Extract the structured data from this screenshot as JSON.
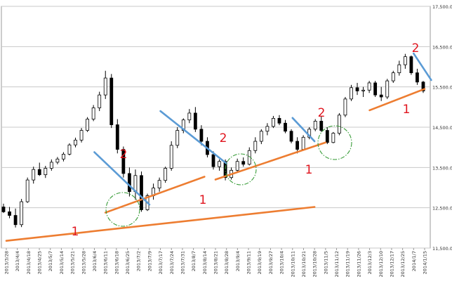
{
  "chart_data": {
    "type": "candlestick",
    "y_axis": {
      "min": 11500,
      "max": 17500,
      "ticks": [
        {
          "value": 17500,
          "label": "17,500.00"
        },
        {
          "value": 16500,
          "label": "16,500.00"
        },
        {
          "value": 15500,
          "label": "15,500.00"
        },
        {
          "value": 14500,
          "label": "14,500.00"
        },
        {
          "value": 13500,
          "label": "13,500.00"
        },
        {
          "value": 12500,
          "label": "12,500.00"
        },
        {
          "value": 11500,
          "label": "11,500.00"
        }
      ],
      "grid": true
    },
    "x_axis": {
      "labels": [
        "2013/3/28",
        "2013/4/4",
        "2013/4/18",
        "2013/4/25",
        "2013/5/7",
        "2013/5/14",
        "2013/5/21",
        "2013/5/28",
        "2013/6/4",
        "2013/6/11",
        "2013/6/18",
        "2013/6/25",
        "2013/7/2",
        "2013/7/9",
        "2013/7/17",
        "2013/7/24",
        "2013/7/31",
        "2013/8/7",
        "2013/8/14",
        "2013/8/21",
        "2013/8/28",
        "2013/9/4",
        "2013/9/11",
        "2013/9/19",
        "2013/9/27",
        "2013/10/4",
        "2013/10/11",
        "2013/10/21",
        "2013/10/28",
        "2013/11/5",
        "2013/11/12",
        "2013/11/19",
        "2013/11/26",
        "2013/12/3",
        "2013/12/10",
        "2013/12/17",
        "2013/12/25",
        "2014/1/7",
        "2014/1/15"
      ]
    },
    "candles": [
      {
        "o": 12520,
        "h": 12600,
        "l": 12370,
        "c": 12400
      },
      {
        "o": 12400,
        "h": 12520,
        "l": 12240,
        "c": 12310
      },
      {
        "o": 12310,
        "h": 12480,
        "l": 12010,
        "c": 12080
      },
      {
        "o": 12080,
        "h": 12720,
        "l": 12020,
        "c": 12650
      },
      {
        "o": 12650,
        "h": 13250,
        "l": 12620,
        "c": 13190
      },
      {
        "o": 13190,
        "h": 13520,
        "l": 13100,
        "c": 13450
      },
      {
        "o": 13450,
        "h": 13620,
        "l": 13290,
        "c": 13320
      },
      {
        "o": 13320,
        "h": 13540,
        "l": 13240,
        "c": 13480
      },
      {
        "o": 13480,
        "h": 13700,
        "l": 13420,
        "c": 13630
      },
      {
        "o": 13630,
        "h": 13760,
        "l": 13580,
        "c": 13710
      },
      {
        "o": 13710,
        "h": 13880,
        "l": 13650,
        "c": 13830
      },
      {
        "o": 13830,
        "h": 14100,
        "l": 13800,
        "c": 14060
      },
      {
        "o": 14060,
        "h": 14240,
        "l": 14000,
        "c": 14180
      },
      {
        "o": 14180,
        "h": 14480,
        "l": 14120,
        "c": 14420
      },
      {
        "o": 14420,
        "h": 14750,
        "l": 14380,
        "c": 14700
      },
      {
        "o": 14700,
        "h": 15050,
        "l": 14650,
        "c": 14980
      },
      {
        "o": 14980,
        "h": 15380,
        "l": 14900,
        "c": 15300
      },
      {
        "o": 15300,
        "h": 15900,
        "l": 15200,
        "c": 15720
      },
      {
        "o": 15720,
        "h": 15820,
        "l": 14480,
        "c": 14560
      },
      {
        "o": 14560,
        "h": 14700,
        "l": 13850,
        "c": 13950
      },
      {
        "o": 13950,
        "h": 14020,
        "l": 13250,
        "c": 13350
      },
      {
        "o": 13350,
        "h": 13500,
        "l": 12780,
        "c": 12900
      },
      {
        "o": 12900,
        "h": 13450,
        "l": 12700,
        "c": 13300
      },
      {
        "o": 13300,
        "h": 13400,
        "l": 12400,
        "c": 12450
      },
      {
        "o": 12450,
        "h": 12850,
        "l": 12420,
        "c": 12800
      },
      {
        "o": 12800,
        "h": 13100,
        "l": 12700,
        "c": 12990
      },
      {
        "o": 12990,
        "h": 13250,
        "l": 12900,
        "c": 13180
      },
      {
        "o": 13180,
        "h": 13520,
        "l": 13120,
        "c": 13480
      },
      {
        "o": 13480,
        "h": 14150,
        "l": 13420,
        "c": 14050
      },
      {
        "o": 14050,
        "h": 14500,
        "l": 13980,
        "c": 14420
      },
      {
        "o": 14420,
        "h": 14720,
        "l": 14350,
        "c": 14680
      },
      {
        "o": 14680,
        "h": 14950,
        "l": 14600,
        "c": 14850
      },
      {
        "o": 14850,
        "h": 15000,
        "l": 14380,
        "c": 14450
      },
      {
        "o": 14450,
        "h": 14550,
        "l": 14050,
        "c": 14150
      },
      {
        "o": 14150,
        "h": 14250,
        "l": 13750,
        "c": 13820
      },
      {
        "o": 13820,
        "h": 13900,
        "l": 13450,
        "c": 13520
      },
      {
        "o": 13520,
        "h": 13700,
        "l": 13420,
        "c": 13650
      },
      {
        "o": 13650,
        "h": 13700,
        "l": 13180,
        "c": 13250
      },
      {
        "o": 13250,
        "h": 13500,
        "l": 13200,
        "c": 13430
      },
      {
        "o": 13430,
        "h": 13720,
        "l": 13380,
        "c": 13650
      },
      {
        "o": 13650,
        "h": 13750,
        "l": 13520,
        "c": 13580
      },
      {
        "o": 13580,
        "h": 14000,
        "l": 13550,
        "c": 13920
      },
      {
        "o": 13920,
        "h": 14250,
        "l": 13850,
        "c": 14150
      },
      {
        "o": 14150,
        "h": 14450,
        "l": 14080,
        "c": 14400
      },
      {
        "o": 14400,
        "h": 14600,
        "l": 14300,
        "c": 14520
      },
      {
        "o": 14520,
        "h": 14780,
        "l": 14480,
        "c": 14720
      },
      {
        "o": 14720,
        "h": 14800,
        "l": 14550,
        "c": 14600
      },
      {
        "o": 14600,
        "h": 14680,
        "l": 14350,
        "c": 14400
      },
      {
        "o": 14400,
        "h": 14450,
        "l": 14100,
        "c": 14150
      },
      {
        "o": 14150,
        "h": 14250,
        "l": 13850,
        "c": 13950
      },
      {
        "o": 13950,
        "h": 14300,
        "l": 13920,
        "c": 14250
      },
      {
        "o": 14250,
        "h": 14500,
        "l": 14200,
        "c": 14450
      },
      {
        "o": 14450,
        "h": 14700,
        "l": 14400,
        "c": 14650
      },
      {
        "o": 14650,
        "h": 14780,
        "l": 14380,
        "c": 14420
      },
      {
        "o": 14420,
        "h": 14500,
        "l": 14080,
        "c": 14120
      },
      {
        "o": 14120,
        "h": 14380,
        "l": 14100,
        "c": 14350
      },
      {
        "o": 14350,
        "h": 14850,
        "l": 14300,
        "c": 14800
      },
      {
        "o": 14800,
        "h": 15250,
        "l": 14750,
        "c": 15200
      },
      {
        "o": 15200,
        "h": 15550,
        "l": 15150,
        "c": 15480
      },
      {
        "o": 15480,
        "h": 15600,
        "l": 15300,
        "c": 15400
      },
      {
        "o": 15400,
        "h": 15500,
        "l": 15250,
        "c": 15420
      },
      {
        "o": 15420,
        "h": 15650,
        "l": 15350,
        "c": 15600
      },
      {
        "o": 15600,
        "h": 15650,
        "l": 15250,
        "c": 15300
      },
      {
        "o": 15300,
        "h": 15500,
        "l": 15150,
        "c": 15250
      },
      {
        "o": 15250,
        "h": 15700,
        "l": 15200,
        "c": 15650
      },
      {
        "o": 15650,
        "h": 15900,
        "l": 15600,
        "c": 15850
      },
      {
        "o": 15850,
        "h": 16150,
        "l": 15780,
        "c": 16050
      },
      {
        "o": 16050,
        "h": 16320,
        "l": 15950,
        "c": 16250
      },
      {
        "o": 16250,
        "h": 16280,
        "l": 15800,
        "c": 15850
      },
      {
        "o": 15850,
        "h": 15950,
        "l": 15550,
        "c": 15620
      },
      {
        "o": 15620,
        "h": 15650,
        "l": 15350,
        "c": 15400
      }
    ],
    "annotations": [
      {
        "text": "1",
        "color": "#e0141e"
      },
      {
        "text": "2",
        "color": "#e0141e"
      },
      {
        "text": "1",
        "color": "#e0141e"
      },
      {
        "text": "2",
        "color": "#e0141e"
      },
      {
        "text": "1",
        "color": "#e0141e"
      },
      {
        "text": "2",
        "color": "#e0141e"
      },
      {
        "text": "1",
        "color": "#e0141e"
      },
      {
        "text": "2",
        "color": "#e0141e"
      }
    ],
    "trendlines": [
      {
        "kind": "support",
        "color": "#ed7d31",
        "x0": 0,
        "y0": 11680,
        "x1": 28,
        "y1": 12520
      },
      {
        "kind": "support",
        "color": "#ed7d31",
        "x0": 9,
        "y0": 12380,
        "x1": 18,
        "y1": 13270
      },
      {
        "kind": "support",
        "color": "#ed7d31",
        "x0": 19,
        "y0": 13200,
        "x1": 29,
        "y1": 14120
      },
      {
        "kind": "support",
        "color": "#ed7d31",
        "x0": 33,
        "y0": 14920,
        "x1": 38,
        "y1": 15450
      },
      {
        "kind": "resistance",
        "color": "#5b9bd5",
        "x0": 8,
        "y0": 13880,
        "x1": 13,
        "y1": 12580
      },
      {
        "kind": "resistance",
        "color": "#5b9bd5",
        "x0": 14,
        "y0": 14900,
        "x1": 20,
        "y1": 13600
      },
      {
        "kind": "resistance",
        "color": "#5b9bd5",
        "x0": 26,
        "y0": 14730,
        "x1": 28,
        "y1": 14150
      },
      {
        "kind": "resistance",
        "color": "#5b9bd5",
        "x0": 37,
        "y0": 16330,
        "x1": 38.6,
        "y1": 15670
      }
    ],
    "circles": [
      {
        "color": "#3a9d3a"
      },
      {
        "color": "#3a9d3a"
      },
      {
        "color": "#3a9d3a"
      }
    ],
    "colors": {
      "up_fill": "#ffffff",
      "down_fill": "#000000",
      "candle_stroke": "#000000",
      "grid": "#c8c8c8",
      "axis_text": "#333333"
    }
  }
}
